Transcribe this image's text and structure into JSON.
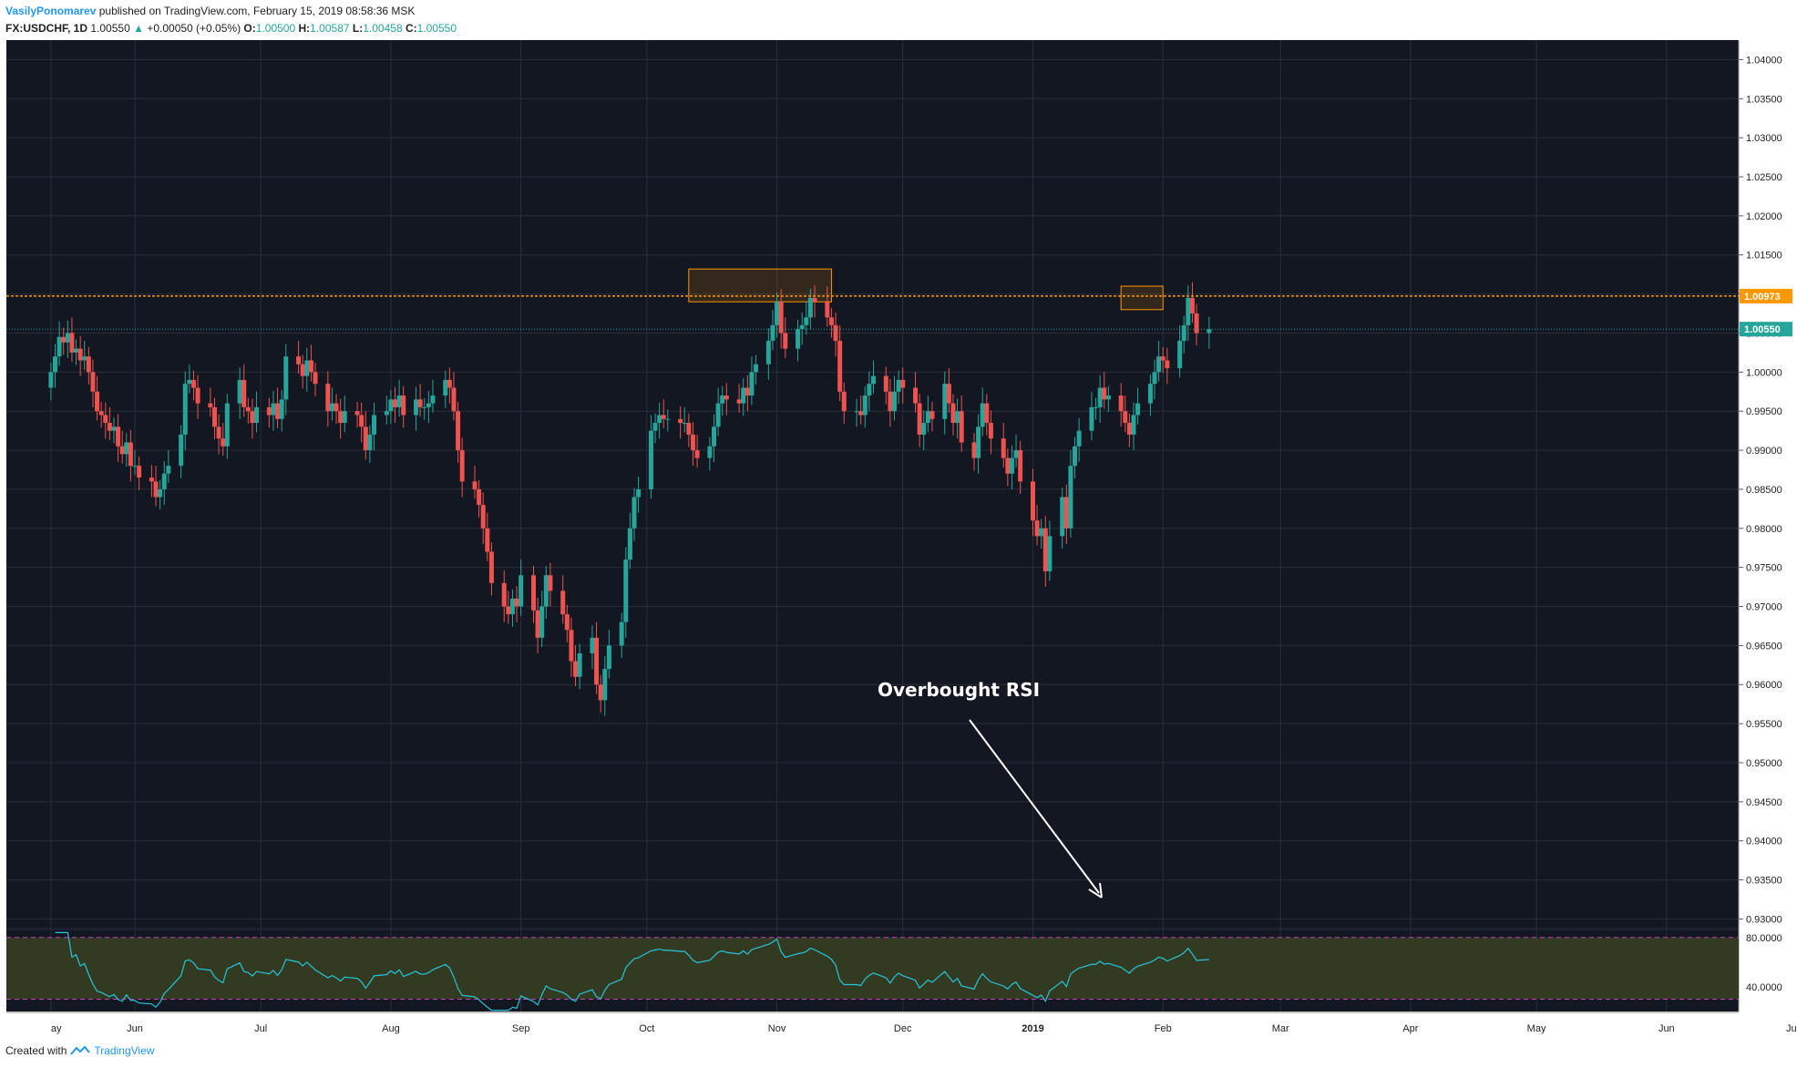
{
  "header": {
    "author": "VasilyPonomarev",
    "published_text": "published on TradingView.com, February 15, 2019 08:58:36 MSK",
    "symbol": "FX:USDCHF, 1D",
    "last": "1.00550",
    "change": "+0.00050 (+0.05%)",
    "o_label": "O:",
    "o_value": "1.00500",
    "h_label": "H:",
    "h_value": "1.00587",
    "l_label": "L:",
    "l_value": "1.00458",
    "c_label": "C:",
    "c_value": "1.00550"
  },
  "footer": {
    "created_with": "Created with",
    "brand": "TradingView"
  },
  "annotation": {
    "text": "Overbought RSI"
  },
  "colors": {
    "background": "#131722",
    "grid": "#2a2e39",
    "up": "#26a69a",
    "down": "#ef5350",
    "resistance": "#ff9800",
    "rsi_line": "#26c6da",
    "rsi_band": "#333a22",
    "rsi_levels": "#c040c0",
    "price_label": "#26a69a"
  },
  "chart_data": {
    "type": "candlestick",
    "symbol": "FX:USDCHF",
    "interval": "1D",
    "price_axis": {
      "ylim": [
        0.929,
        1.0425
      ],
      "ticks": [
        "1.04000",
        "1.03500",
        "1.03000",
        "1.02500",
        "1.02000",
        "1.01500",
        "1.01000",
        "1.00500",
        "1.00000",
        "0.99500",
        "0.99000",
        "0.98500",
        "0.98000",
        "0.97500",
        "0.97000",
        "0.96500",
        "0.96000",
        "0.95500",
        "0.95000",
        "0.94500",
        "0.94000",
        "0.93500",
        "0.93000"
      ]
    },
    "time_axis": {
      "ticks": [
        "ay",
        "Jun",
        "Jul",
        "Aug",
        "Sep",
        "Oct",
        "Nov",
        "Dec",
        "2019",
        "Feb",
        "Mar",
        "Apr",
        "May",
        "Jun",
        "Jul"
      ],
      "tick_days": [
        -20,
        0,
        30,
        61,
        92,
        122,
        153,
        183,
        214,
        245,
        273,
        304,
        334,
        365,
        395
      ]
    },
    "resistance_level": {
      "value": 1.00973,
      "label": "1.00973"
    },
    "last_price": {
      "value": 1.0055,
      "label": "1.00550"
    },
    "highlight_boxes": [
      {
        "day_from": 132,
        "day_to": 166,
        "price_low": 1.009,
        "price_high": 1.0132
      },
      {
        "day_from": 235,
        "day_to": 245,
        "price_low": 1.008,
        "price_high": 1.011
      }
    ],
    "candles_close": [
      1.0,
      1.002,
      1.0045,
      1.0038,
      1.005,
      1.0025,
      1.003,
      1.0015,
      1.002,
      1.0,
      0.9975,
      0.995,
      0.9945,
      0.9935,
      0.9925,
      0.993,
      0.9905,
      0.9895,
      0.991,
      0.988,
      0.988,
      0.9865,
      0.986,
      0.984,
      0.985,
      0.987,
      0.988,
      0.992,
      0.9985,
      0.999,
      0.998,
      0.996,
      0.9955,
      0.993,
      0.9915,
      0.9905,
      0.996,
      0.999,
      0.9955,
      0.995,
      0.9935,
      0.9955,
      0.9945,
      0.996,
      0.994,
      0.9965,
      1.002,
      1.001,
      0.9995,
      1.0015,
      1.0,
      0.9985,
      0.995,
      0.996,
      0.995,
      0.9935,
      0.995,
      0.9945,
      0.993,
      0.99,
      0.992,
      0.9945,
      0.995,
      0.9965,
      0.9955,
      0.997,
      0.9945,
      0.9965,
      0.9955,
      0.9955,
      0.996,
      0.997,
      0.999,
      0.998,
      0.995,
      0.99,
      0.986,
      0.985,
      0.983,
      0.98,
      0.977,
      0.973,
      0.97,
      0.969,
      0.971,
      0.97,
      0.974,
      0.9695,
      0.966,
      0.97,
      0.974,
      0.972,
      0.969,
      0.967,
      0.963,
      0.961,
      0.964,
      0.966,
      0.96,
      0.958,
      0.962,
      0.965,
      0.968,
      0.976,
      0.98,
      0.984,
      0.985,
      0.9925,
      0.9935,
      0.9945,
      0.994,
      0.994,
      0.9935,
      0.9935,
      0.992,
      0.99,
      0.989,
      0.9905,
      0.993,
      0.996,
      0.997,
      0.9965,
      0.996,
      0.998,
      0.997,
      1.0,
      1.001,
      1.004,
      1.006,
      1.009,
      1.005,
      1.003,
      1.0055,
      1.006,
      1.007,
      1.0095,
      1.009,
      1.007,
      1.006,
      1.004,
      0.9975,
      0.995,
      0.995,
      0.9945,
      0.997,
      0.9985,
      0.9995,
      0.9975,
      0.995,
      0.9975,
      0.999,
      0.998,
      0.996,
      0.992,
      0.9935,
      0.995,
      0.994,
      0.9985,
      0.996,
      0.9935,
      0.995,
      0.991,
      0.989,
      0.993,
      0.996,
      0.9935,
      0.9915,
      0.989,
      0.987,
      0.989,
      0.99,
      0.986,
      0.981,
      0.979,
      0.98,
      0.9745,
      0.979,
      0.984,
      0.98,
      0.988,
      0.9905,
      0.9925,
      0.9955,
      0.9955,
      0.998,
      0.9965,
      0.997,
      0.995,
      0.9935,
      0.992,
      0.9945,
      0.996,
      0.9985,
      1.0,
      1.002,
      1.0015,
      1.0005,
      1.004,
      1.006,
      1.0095,
      1.0075,
      1.005,
      1.0055
    ],
    "rsi": {
      "overbought": 70,
      "oversold": 30,
      "ticks": [
        "80.0000",
        "40.0000"
      ],
      "ylim": [
        20,
        85
      ]
    }
  }
}
